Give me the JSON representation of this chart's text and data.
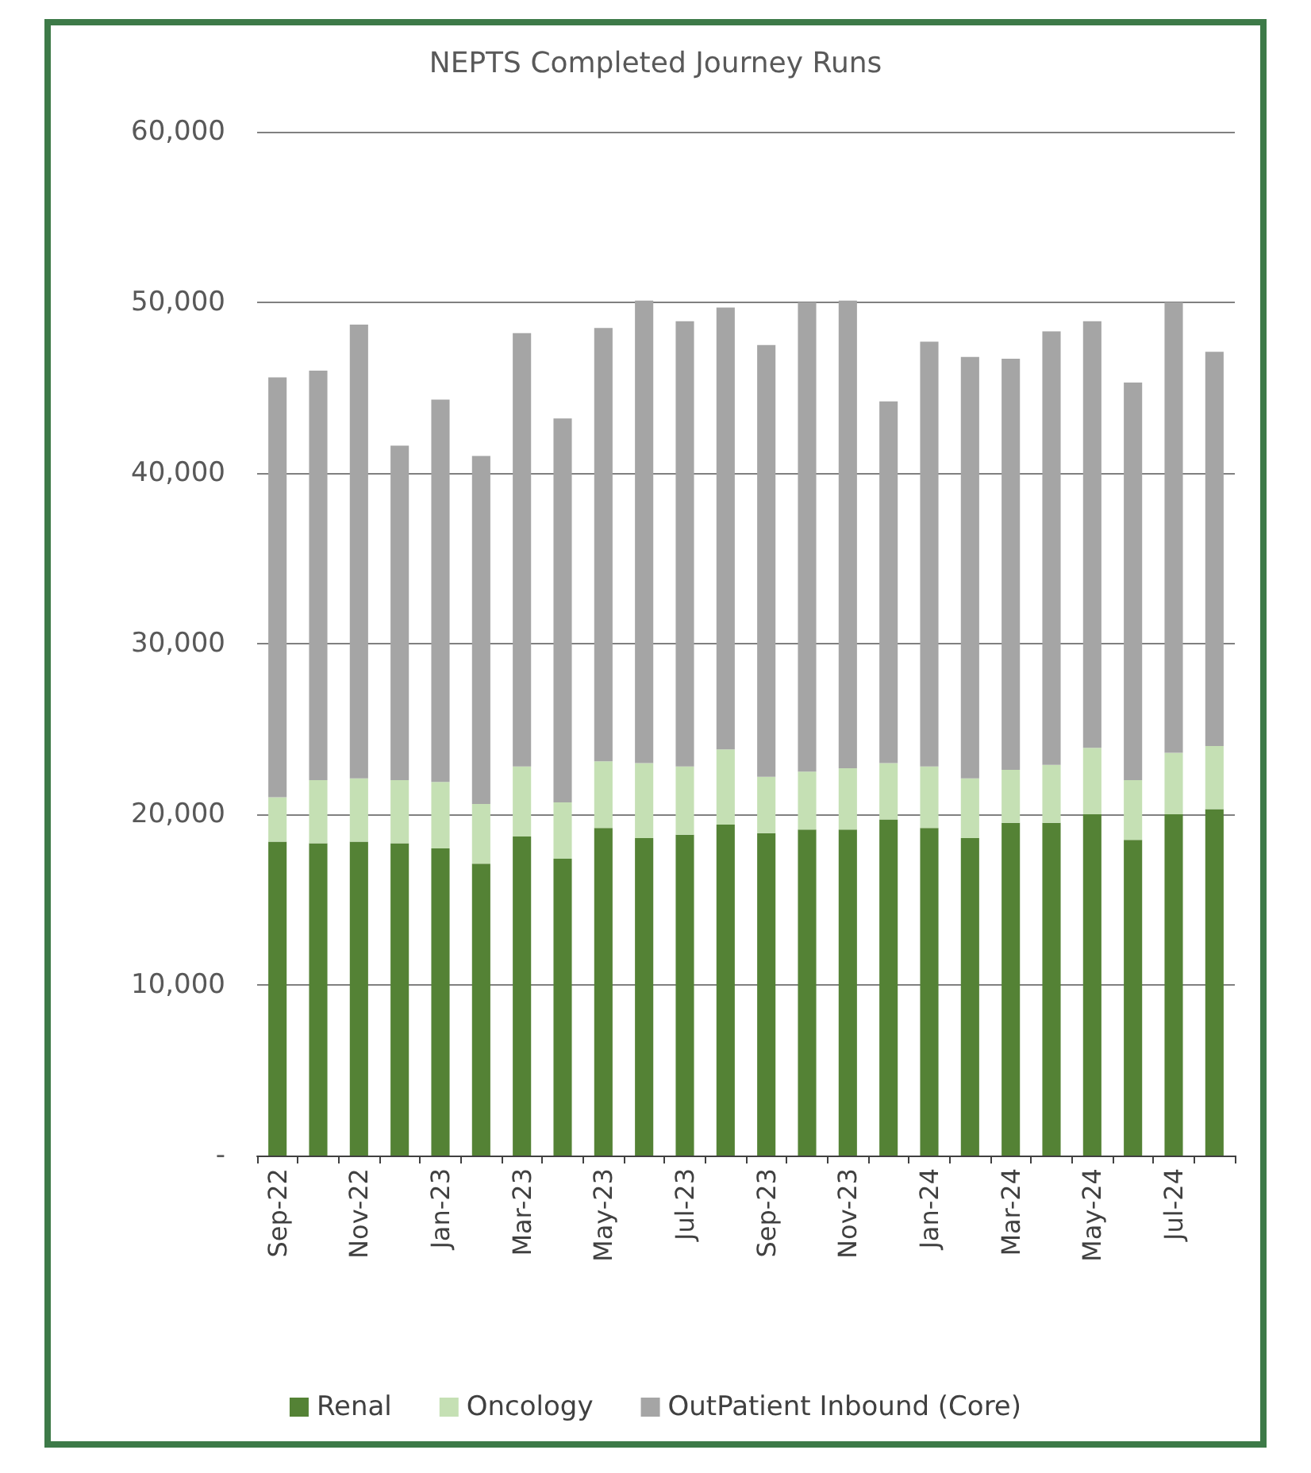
{
  "chart_data": {
    "type": "bar",
    "title": "NEPTS Completed Journey Runs",
    "stacked": true,
    "categories": [
      "Sep-22",
      null,
      "Nov-22",
      null,
      "Jan-23",
      null,
      "Mar-23",
      null,
      "May-23",
      null,
      "Jul-23",
      null,
      "Sep-23",
      null,
      "Nov-23",
      null,
      "Jan-24",
      null,
      "Mar-24",
      null,
      "May-24",
      null,
      "Jul-24",
      null
    ],
    "series": [
      {
        "name": "Renal",
        "color": "#548235",
        "values": [
          18400,
          18300,
          18400,
          18300,
          18000,
          17100,
          18700,
          17400,
          19200,
          18600,
          18800,
          19400,
          18900,
          19100,
          19100,
          19700,
          19200,
          18600,
          19500,
          19500,
          20000,
          18500,
          20000,
          20300
        ]
      },
      {
        "name": "Oncology",
        "color": "#c5e0b4",
        "values": [
          2600,
          3700,
          3700,
          3700,
          3900,
          3500,
          4100,
          3300,
          3900,
          4400,
          4000,
          4400,
          3300,
          3400,
          3600,
          3300,
          3600,
          3500,
          3100,
          3400,
          3900,
          3500,
          3600,
          3700
        ]
      },
      {
        "name": "OutPatient Inbound (Core)",
        "color": "#a5a5a5",
        "values": [
          24600,
          24000,
          26600,
          19600,
          22400,
          20400,
          25400,
          22500,
          25400,
          27100,
          26100,
          25900,
          25300,
          27500,
          27400,
          21200,
          24900,
          24700,
          24100,
          25400,
          25000,
          23300,
          26400,
          23100
        ]
      }
    ],
    "ylim": [
      0,
      60000
    ],
    "yticks": [
      {
        "value": 0,
        "label": "-"
      },
      {
        "value": 10000,
        "label": "10,000"
      },
      {
        "value": 20000,
        "label": "20,000"
      },
      {
        "value": 30000,
        "label": "30,000"
      },
      {
        "value": 40000,
        "label": "40,000"
      },
      {
        "value": 50000,
        "label": "50,000"
      },
      {
        "value": 60000,
        "label": "60,000"
      }
    ],
    "grid": "y",
    "legend": "bottom"
  }
}
